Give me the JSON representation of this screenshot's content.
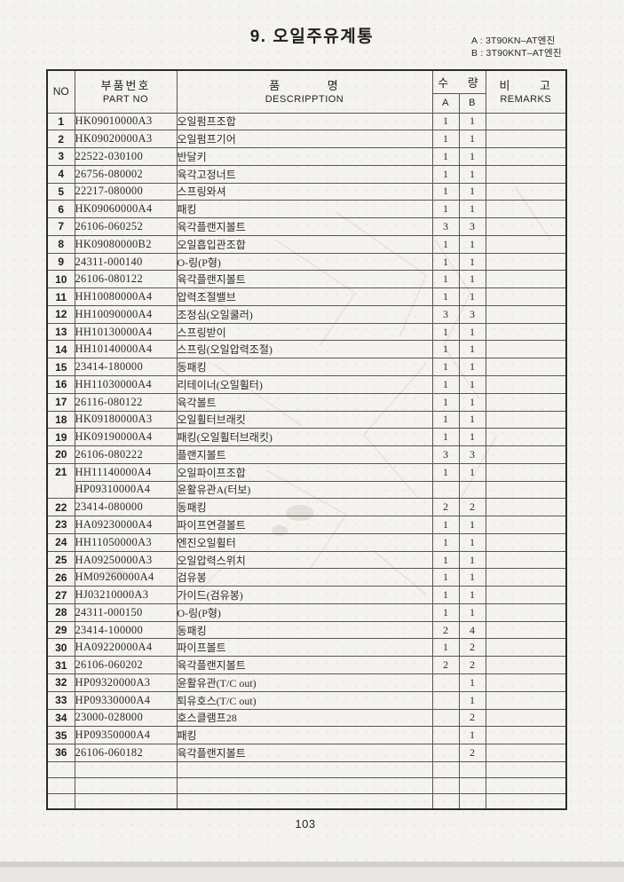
{
  "page": {
    "title": "9. 오일주유계통",
    "engine_note_a": "A : 3T90KN–AT엔진",
    "engine_note_b": "B : 3T90KNT–AT엔진",
    "page_number": "103"
  },
  "table": {
    "headers": {
      "no": "NO",
      "part_no_ko": "부품번호",
      "part_no_en": "PART NO",
      "description_ko": "품 명",
      "description_en": "DESCRIPPTION",
      "qty_ko": "수 량",
      "qty_a": "A",
      "qty_b": "B",
      "remarks_ko": "비 고",
      "remarks_en": "REMARKS"
    },
    "rows": [
      {
        "no": "1",
        "part": "HK09010000A3",
        "desc": "오일펌프조합",
        "a": "1",
        "b": "1",
        "rem": ""
      },
      {
        "no": "2",
        "part": "HK09020000A3",
        "desc": "오일펌프기어",
        "a": "1",
        "b": "1",
        "rem": ""
      },
      {
        "no": "3",
        "part": "22522-030100",
        "desc": "반달키",
        "a": "1",
        "b": "1",
        "rem": ""
      },
      {
        "no": "4",
        "part": "26756-080002",
        "desc": "육각고정너트",
        "a": "1",
        "b": "1",
        "rem": ""
      },
      {
        "no": "5",
        "part": "22217-080000",
        "desc": "스프링와셔",
        "a": "1",
        "b": "1",
        "rem": ""
      },
      {
        "no": "6",
        "part": "HK09060000A4",
        "desc": "패킹",
        "a": "1",
        "b": "1",
        "rem": ""
      },
      {
        "no": "7",
        "part": "26106-060252",
        "desc": "육각플랜지볼트",
        "a": "3",
        "b": "3",
        "rem": ""
      },
      {
        "no": "8",
        "part": "HK09080000B2",
        "desc": "오일흡입관조합",
        "a": "1",
        "b": "1",
        "rem": ""
      },
      {
        "no": "9",
        "part": "24311-000140",
        "desc": "O-링(P형)",
        "a": "1",
        "b": "1",
        "rem": ""
      },
      {
        "no": "10",
        "part": "26106-080122",
        "desc": "육각플랜지볼트",
        "a": "1",
        "b": "1",
        "rem": ""
      },
      {
        "no": "11",
        "part": "HH10080000A4",
        "desc": "압력조절밸브",
        "a": "1",
        "b": "1",
        "rem": ""
      },
      {
        "no": "12",
        "part": "HH10090000A4",
        "desc": "조정심(오일쿨러)",
        "a": "3",
        "b": "3",
        "rem": ""
      },
      {
        "no": "13",
        "part": "HH10130000A4",
        "desc": "스프링받이",
        "a": "1",
        "b": "1",
        "rem": ""
      },
      {
        "no": "14",
        "part": "HH10140000A4",
        "desc": "스프링(오일압력조절)",
        "a": "1",
        "b": "1",
        "rem": ""
      },
      {
        "no": "15",
        "part": "23414-180000",
        "desc": "동패킹",
        "a": "1",
        "b": "1",
        "rem": ""
      },
      {
        "no": "16",
        "part": "HH11030000A4",
        "desc": "리테이너(오일휠터)",
        "a": "1",
        "b": "1",
        "rem": ""
      },
      {
        "no": "17",
        "part": "26116-080122",
        "desc": "육각볼트",
        "a": "1",
        "b": "1",
        "rem": ""
      },
      {
        "no": "18",
        "part": "HK09180000A3",
        "desc": "오일휠터브래킷",
        "a": "1",
        "b": "1",
        "rem": ""
      },
      {
        "no": "19",
        "part": "HK09190000A4",
        "desc": "패킹(오일휠터브래킷)",
        "a": "1",
        "b": "1",
        "rem": ""
      },
      {
        "no": "20",
        "part": "26106-080222",
        "desc": "플랜지볼트",
        "a": "3",
        "b": "3",
        "rem": ""
      },
      {
        "no": "21",
        "part": "HH11140000A4",
        "desc": "오일파이프조합",
        "a": "1",
        "b": "1",
        "rem": ""
      },
      {
        "no": "",
        "sub": true,
        "part": "HP09310000A4",
        "desc": "윤활유관A(터보)",
        "a": "",
        "b": "",
        "rem": ""
      },
      {
        "no": "22",
        "part": "23414-080000",
        "desc": "동패킹",
        "a": "2",
        "b": "2",
        "rem": ""
      },
      {
        "no": "23",
        "part": "HA09230000A4",
        "desc": "파이프연결볼트",
        "a": "1",
        "b": "1",
        "rem": ""
      },
      {
        "no": "24",
        "part": "HH11050000A3",
        "desc": "엔진오일휠터",
        "a": "1",
        "b": "1",
        "rem": ""
      },
      {
        "no": "25",
        "part": "HA09250000A3",
        "desc": "오일압력스위치",
        "a": "1",
        "b": "1",
        "rem": ""
      },
      {
        "no": "26",
        "part": "HM09260000A4",
        "desc": "검유봉",
        "a": "1",
        "b": "1",
        "rem": ""
      },
      {
        "no": "27",
        "part": "HJ03210000A3",
        "desc": "가이드(검유봉)",
        "a": "1",
        "b": "1",
        "rem": ""
      },
      {
        "no": "28",
        "part": "24311-000150",
        "desc": "O-링(P형)",
        "a": "1",
        "b": "1",
        "rem": ""
      },
      {
        "no": "29",
        "part": "23414-100000",
        "desc": "동패킹",
        "a": "2",
        "b": "4",
        "rem": ""
      },
      {
        "no": "30",
        "part": "HA09220000A4",
        "desc": "파이프볼트",
        "a": "1",
        "b": "2",
        "rem": ""
      },
      {
        "no": "31",
        "part": "26106-060202",
        "desc": "육각플랜지볼트",
        "a": "2",
        "b": "2",
        "rem": ""
      },
      {
        "no": "32",
        "part": "HP09320000A3",
        "desc": "윤활유관(T/C out)",
        "a": "",
        "b": "1",
        "rem": ""
      },
      {
        "no": "33",
        "part": "HP09330000A4",
        "desc": "퇴유호스(T/C out)",
        "a": "",
        "b": "1",
        "rem": ""
      },
      {
        "no": "34",
        "part": "23000-028000",
        "desc": "호스클램프28",
        "a": "",
        "b": "2",
        "rem": ""
      },
      {
        "no": "35",
        "part": "HP09350000A4",
        "desc": "패킹",
        "a": "",
        "b": "1",
        "rem": ""
      },
      {
        "no": "36",
        "part": "26106-060182",
        "desc": "육각플랜지볼트",
        "a": "",
        "b": "2",
        "rem": ""
      }
    ],
    "empty_rows": 3
  }
}
